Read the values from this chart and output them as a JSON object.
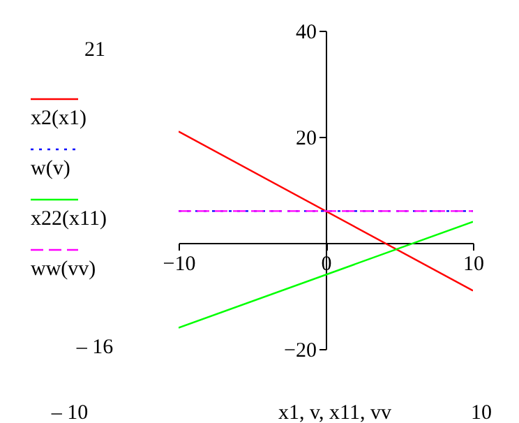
{
  "chart_data": {
    "type": "line",
    "xlabel": "x1, v, x11, vv",
    "xlim": [
      -10,
      10
    ],
    "ylim": [
      -20,
      40
    ],
    "xticks": [
      -10,
      0,
      10
    ],
    "yticks": [
      -20,
      20,
      40
    ],
    "grid": false,
    "legend": "left",
    "marker": "none",
    "x": [
      -10,
      10
    ],
    "series": [
      {
        "name": "x2(x1)",
        "color": "#ff0000",
        "line_style": "solid",
        "values": [
          21,
          -9
        ]
      },
      {
        "name": "w(v)",
        "color": "#0000ff",
        "line_style": "dotted",
        "values": [
          6,
          6
        ]
      },
      {
        "name": "x22(x11)",
        "color": "#00ff00",
        "line_style": "solid",
        "values": [
          -16,
          4
        ]
      },
      {
        "name": "ww(vv)",
        "color": "#ff00ff",
        "line_style": "dashed",
        "values": [
          6,
          6
        ]
      }
    ],
    "annotations": [
      "21",
      "– 16",
      "– 10",
      "10"
    ]
  }
}
